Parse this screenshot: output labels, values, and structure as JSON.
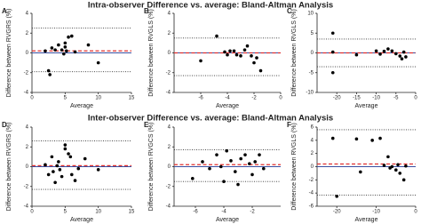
{
  "titles": [
    "Intra-observer Difference vs. average: Bland-Altman Analysis",
    "Inter-observer Difference vs. average: Bland-Altman Analysis"
  ],
  "chart_data": [
    {
      "type": "scatter",
      "label": "A",
      "y_label": "Difference between RVGRS (%)",
      "x_label": "Average",
      "color": "#000000",
      "x": [
        2,
        2.5,
        2.7,
        3,
        3.5,
        4,
        4.5,
        4.8,
        5,
        5,
        5.2,
        5.5,
        6,
        6.5,
        8.5,
        10
      ],
      "values": [
        0.2,
        -1.8,
        -2.2,
        0.5,
        0.3,
        0.8,
        0.3,
        -0.1,
        1,
        0.6,
        0.2,
        1.6,
        1.7,
        0.1,
        0.8,
        -1
      ],
      "xlim": [
        0,
        15
      ],
      "ylim": [
        -4,
        4
      ],
      "xticks": [
        0,
        5,
        10,
        15
      ],
      "yticks": [
        -4,
        -2,
        0,
        2,
        4
      ],
      "mean": 0.2,
      "limits": [
        2.5,
        -1.9
      ]
    },
    {
      "type": "scatter",
      "label": "B",
      "y_label": "Difference between RVGLS (%)",
      "x_label": "Average",
      "color": "#000000",
      "x": [
        -6,
        -4.8,
        -4.2,
        -4,
        -3.8,
        -3.5,
        -3.3,
        -3,
        -2.7,
        -2.5,
        -2.2,
        -2,
        -1.8,
        -1.5
      ],
      "values": [
        -0.8,
        1.7,
        0.1,
        -0.2,
        0.2,
        0.2,
        -0.2,
        -0.3,
        0.3,
        0.7,
        -0.3,
        -1,
        -0.5,
        -1.8
      ],
      "xlim": [
        -8,
        0
      ],
      "ylim": [
        -4,
        4
      ],
      "xticks": [
        -6,
        -4,
        -2,
        0
      ],
      "yticks": [
        -4,
        -2,
        0,
        2,
        4
      ],
      "mean": 0,
      "limits": [
        1.5,
        -2.3
      ]
    },
    {
      "type": "scatter",
      "label": "C",
      "y_label": "Difference between RVGLS (%)",
      "x_label": "Average",
      "color": "#000000",
      "x": [
        -21,
        -21,
        -21,
        -15,
        -10,
        -9,
        -8,
        -7,
        -6,
        -5,
        -4,
        -3.5,
        -3,
        -2.5
      ],
      "values": [
        5,
        0.2,
        -5,
        -0.5,
        0.5,
        -0.3,
        0.4,
        1,
        0.5,
        -0.2,
        -0.8,
        -1.5,
        0.2,
        -1
      ],
      "xlim": [
        -25,
        0
      ],
      "ylim": [
        -10,
        10
      ],
      "xticks": [
        -20,
        -15,
        -10,
        -5,
        0
      ],
      "yticks": [
        -10,
        -5,
        0,
        5,
        10
      ],
      "mean": 0,
      "limits": [
        3.5,
        -3.5
      ]
    },
    {
      "type": "scatter",
      "label": "D",
      "y_label": "Difference between RVGRS (%)",
      "x_label": "Average",
      "color": "#000000",
      "x": [
        2,
        2.5,
        3,
        3.2,
        3.5,
        3.8,
        4,
        4.2,
        4.5,
        5,
        5,
        5.5,
        5.8,
        6,
        6.5,
        7,
        8,
        10
      ],
      "values": [
        0.2,
        -0.8,
        1,
        -0.5,
        -1.6,
        0.1,
        0.5,
        -0.3,
        -1,
        2.2,
        1.8,
        1.3,
        1,
        -0.8,
        -1.4,
        -0.2,
        0.8,
        -0.3
      ],
      "xlim": [
        0,
        15
      ],
      "ylim": [
        -4,
        4
      ],
      "xticks": [
        0,
        5,
        10,
        15
      ],
      "yticks": [
        -4,
        -2,
        0,
        2,
        4
      ],
      "mean": 0.1,
      "limits": [
        2.6,
        -2.3
      ]
    },
    {
      "type": "scatter",
      "label": "E",
      "y_label": "Difference between RVGCS (%)",
      "x_label": "Average",
      "color": "#000000",
      "x": [
        -6.2,
        -5.5,
        -5,
        -4.5,
        -4.2,
        -4,
        -3.8,
        -3.5,
        -3.2,
        -3,
        -2.8,
        -2.5,
        -2.2,
        -2,
        -1.8,
        -1.5,
        -1.2
      ],
      "values": [
        -1.2,
        0.5,
        -0.2,
        1.2,
        0,
        -1.5,
        1.6,
        0.6,
        -0.5,
        -1.8,
        0.8,
        1.2,
        0.3,
        -0.8,
        0.5,
        1.2,
        -0.2
      ],
      "xlim": [
        -7.5,
        0
      ],
      "ylim": [
        -4,
        4
      ],
      "xticks": [
        -6,
        -4,
        -2
      ],
      "yticks": [
        -4,
        -2,
        0,
        2,
        4
      ],
      "mean": 0.2,
      "limits": [
        1.7,
        -1.5
      ]
    },
    {
      "type": "scatter",
      "label": "F",
      "y_label": "Difference between RVGLS (%)",
      "x_label": "Average",
      "color": "#000000",
      "x": [
        -21,
        -20,
        -15,
        -14,
        -11,
        -9,
        -8,
        -7,
        -6.5,
        -6,
        -5,
        -4.5,
        -4,
        -3,
        -2.5
      ],
      "values": [
        4.3,
        -4.5,
        4.2,
        -0.8,
        4,
        4.3,
        0.2,
        1.5,
        -0.2,
        0,
        -0.5,
        0.3,
        -1,
        -2,
        0.1
      ],
      "xlim": [
        -25,
        0
      ],
      "ylim": [
        -6,
        6
      ],
      "xticks": [
        -20,
        -10,
        0
      ],
      "yticks": [
        -6,
        -4,
        -2,
        0,
        2,
        4,
        6
      ],
      "mean": 0.4,
      "limits": [
        5.6,
        -4.3
      ]
    }
  ]
}
